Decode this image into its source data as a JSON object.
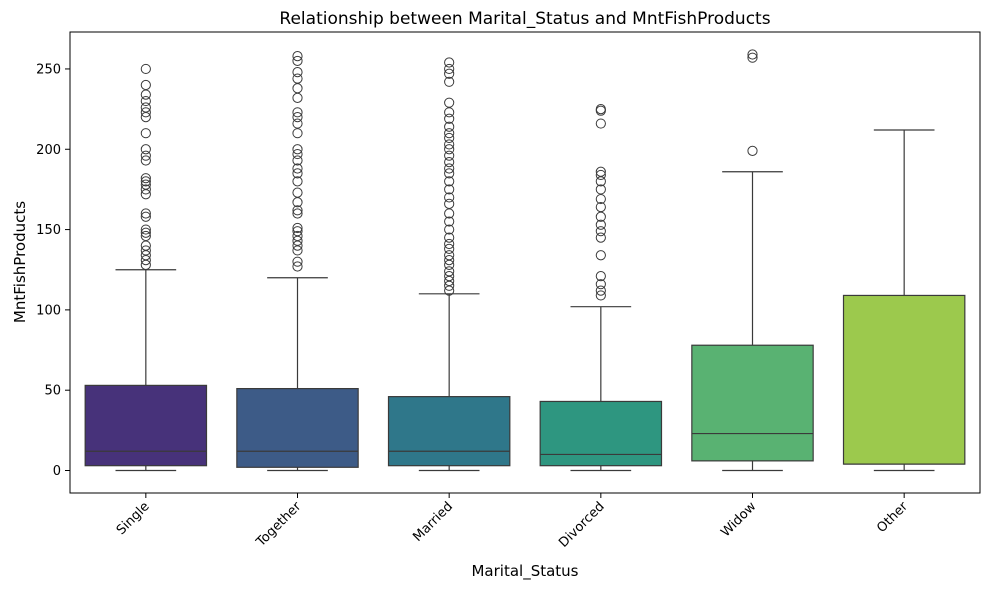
{
  "chart_data": {
    "type": "box",
    "title": "Relationship between Marital_Status and MntFishProducts",
    "xlabel": "Marital_Status",
    "ylabel": "MntFishProducts",
    "ylim": [
      -14,
      273
    ],
    "yticks": [
      0,
      50,
      100,
      150,
      200,
      250
    ],
    "grid": false,
    "legend": "none",
    "categories": [
      "Single",
      "Together",
      "Married",
      "Divorced",
      "Widow",
      "Other"
    ],
    "colors": [
      "#47327a",
      "#3d5b87",
      "#2f778a",
      "#2e9680",
      "#59b272",
      "#9cc94d"
    ],
    "boxes": [
      {
        "q1": 3,
        "median": 12,
        "q3": 53,
        "whisker_low": 0,
        "whisker_high": 125,
        "outliers": [
          128,
          131,
          134,
          137,
          140,
          146,
          148,
          150,
          158,
          160,
          172,
          175,
          178,
          180,
          182,
          193,
          196,
          200,
          210,
          220,
          223,
          226,
          230,
          234,
          240,
          250
        ]
      },
      {
        "q1": 2,
        "median": 12,
        "q3": 51,
        "whisker_low": 0,
        "whisker_high": 120,
        "outliers": [
          127,
          130,
          137,
          140,
          143,
          146,
          149,
          151,
          160,
          162,
          167,
          173,
          180,
          185,
          188,
          193,
          197,
          200,
          210,
          216,
          220,
          223,
          232,
          238,
          244,
          248,
          255,
          258
        ]
      },
      {
        "q1": 3,
        "median": 12,
        "q3": 46,
        "whisker_low": 0,
        "whisker_high": 110,
        "outliers": [
          112,
          115,
          118,
          121,
          124,
          128,
          131,
          134,
          138,
          141,
          145,
          150,
          155,
          160,
          166,
          170,
          175,
          180,
          185,
          188,
          192,
          196,
          200,
          203,
          207,
          210,
          214,
          219,
          223,
          229,
          242,
          247,
          250,
          254
        ]
      },
      {
        "q1": 3,
        "median": 10,
        "q3": 43,
        "whisker_low": 0,
        "whisker_high": 102,
        "outliers": [
          109,
          112,
          116,
          121,
          134,
          145,
          149,
          153,
          158,
          164,
          169,
          175,
          180,
          184,
          186,
          216,
          224,
          225
        ]
      },
      {
        "q1": 6,
        "median": 23,
        "q3": 78,
        "whisker_low": 0,
        "whisker_high": 186,
        "outliers": [
          199,
          257,
          259
        ]
      },
      {
        "q1": 4,
        "median": 4,
        "q3": 109,
        "whisker_low": 0,
        "whisker_high": 212,
        "outliers": []
      }
    ]
  }
}
